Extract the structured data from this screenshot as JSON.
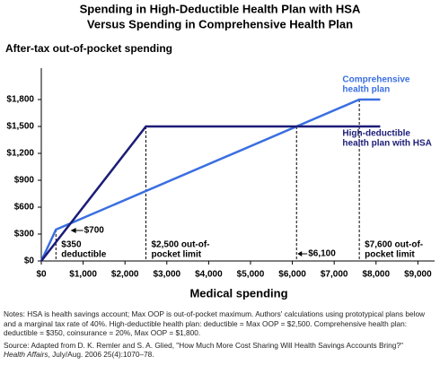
{
  "chart_data": {
    "type": "line",
    "title": [
      "Spending in High-Deductible Health Plan with HSA",
      "Versus Spending in Comprehensive Health Plan"
    ],
    "y_label": "After-tax out-of-pocket spending",
    "x_label": "Medical spending",
    "xlim": [
      0,
      9400
    ],
    "ylim": [
      0,
      2150
    ],
    "xticks": [
      {
        "value": 0,
        "label": "$0"
      },
      {
        "value": 1000,
        "label": "$1,000"
      },
      {
        "value": 2000,
        "label": "$2,000"
      },
      {
        "value": 3000,
        "label": "$3,000"
      },
      {
        "value": 4000,
        "label": "$4,000"
      },
      {
        "value": 5000,
        "label": "$5,000"
      },
      {
        "value": 6000,
        "label": "$6,000"
      },
      {
        "value": 7000,
        "label": "$7,000"
      },
      {
        "value": 8000,
        "label": "$8,000"
      },
      {
        "value": 9000,
        "label": "$9,000"
      }
    ],
    "yticks": [
      {
        "value": 0,
        "label": "$0"
      },
      {
        "value": 300,
        "label": "$300"
      },
      {
        "value": 600,
        "label": "$600"
      },
      {
        "value": 900,
        "label": "$900"
      },
      {
        "value": 1200,
        "label": "$1,200"
      },
      {
        "value": 1500,
        "label": "$1,500"
      },
      {
        "value": 1800,
        "label": "$1,800"
      }
    ],
    "series": [
      {
        "name": [
          "Comprehensive",
          "health plan"
        ],
        "color": "#3a6fe0",
        "x": [
          0,
          350,
          7600,
          8100
        ],
        "values": [
          0,
          350,
          1800,
          1800
        ]
      },
      {
        "name": [
          "High-deductible",
          "health plan with HSA"
        ],
        "color": "#1c1c78",
        "x": [
          0,
          2500,
          8100
        ],
        "values": [
          0,
          1500,
          1500
        ]
      }
    ],
    "reference_lines": [
      {
        "value": 350,
        "label": [
          "$350",
          "deductible"
        ]
      },
      {
        "value": 2500,
        "label": [
          "$2,500 out-of-",
          "pocket limit"
        ]
      },
      {
        "value": 6100,
        "label": [
          "$6,100"
        ]
      },
      {
        "value": 7600,
        "label": [
          "$7,600 out-of-",
          "pocket limit"
        ]
      }
    ],
    "arrow_note": {
      "value": 700,
      "label": "$700"
    },
    "notes": "Notes: HSA is health savings account; Max OOP is out-of-pocket maximum. Authors' calculations using prototypical plans below and a marginal tax rate of 40%. High-deductible health plan: deductible = Max OOP = $2,500. Comprehensive health plan: deductible = $350, coinsurance = 20%, Max OOP = $1,800.",
    "source": [
      "Source: Adapted from D. K. Remler and S. A. Glied, \"How Much More Cost Sharing Will Health Savings Accounts Bring?\"",
      "Health Affairs",
      ", July/Aug. 2006 25(4):1070–78."
    ]
  }
}
